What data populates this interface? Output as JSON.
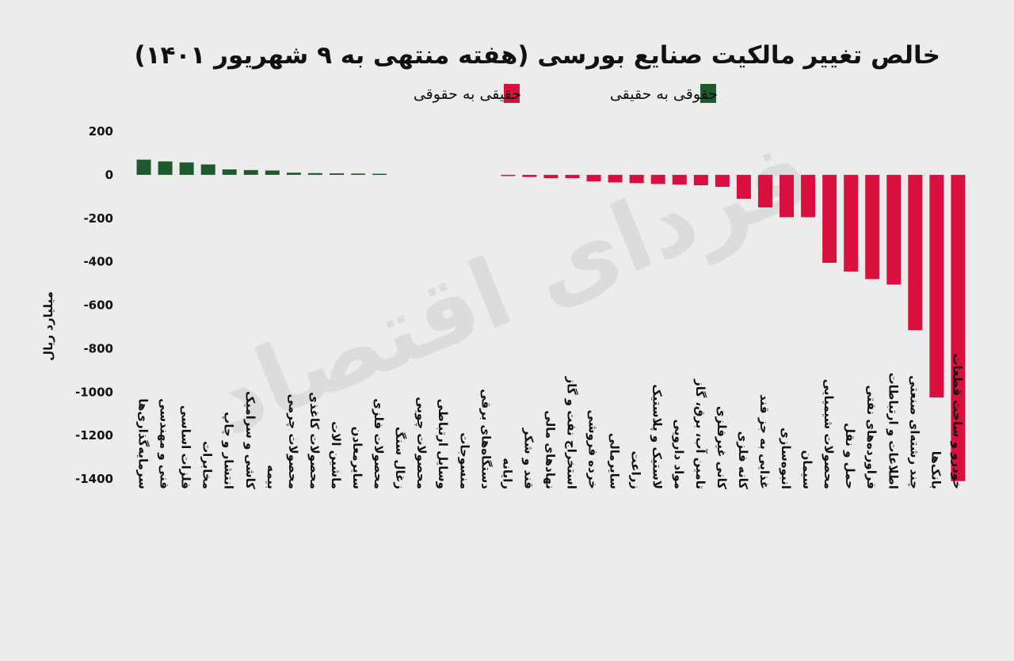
{
  "colors": {
    "positive": "#1f5a2e",
    "negative": "#d90f3d",
    "background": "#ececec",
    "watermark": "#b9c4bc"
  },
  "watermark": "فردای اقتصاد",
  "chart_data": {
    "type": "bar",
    "title": "خالص تغییر مالکیت صنایع بورسی (هفته منتهی به ۹ شهریور ۱۴۰۱)",
    "ylabel": "میلیارد ریال",
    "ylim": [
      -1400,
      200
    ],
    "yticks": [
      200,
      0,
      -200,
      -400,
      -600,
      -800,
      -1000,
      -1200,
      -1400
    ],
    "ytick_labels": [
      "200",
      "0",
      "-200",
      "-400",
      "-600",
      "-800",
      "-1000",
      "-1200",
      "-1400"
    ],
    "grid": false,
    "legend_position": "top-center",
    "legend": [
      {
        "label": "حقوقی به حقیقی",
        "color": "#1f5a2e"
      },
      {
        "label": "حقیقی به حقوقی",
        "color": "#d90f3d"
      }
    ],
    "categories": [
      "سرمایه‌گذاری‌ها",
      "فنی و مهندسی",
      "فلزات اساسی",
      "مخابرات",
      "انتشار و چاپ",
      "کاشی و سرامیک",
      "بیمه",
      "محصولات چرمی",
      "محصولات کاغذی",
      "ماشین الات",
      "سایرمعادن",
      "محصولات فلزی",
      "زغال سنگ",
      "محصولات چوبی",
      "وسایل ارتباطی",
      "منسوجات",
      "دستگاه‌های برقی",
      "رایانه",
      "قند و شکر",
      "نهادهای مالی",
      "استخراج نفت و گاز",
      "خرده فروشی",
      "سایرمالی",
      "زراعت",
      "لاستیک و پلاستیک",
      "مواد دارویی",
      "تامین آب، برق، گاز",
      "کانی غیرفلزی",
      "کانه فلزی",
      "غذایی به جز قند",
      "انبوه‌سازی",
      "سیمان",
      "محصولات شیمیایی",
      "حمل و نقل",
      "فراورده‌های نفتی",
      "اطلاعات و ارتباطات",
      "چند رشته‌ای صنعتی",
      "بانک‌ها",
      "خودرو و ساخت قطعات"
    ],
    "values": [
      70,
      62,
      57,
      48,
      25,
      22,
      20,
      10,
      8,
      7,
      6,
      5,
      0,
      0,
      0,
      0,
      0,
      -5,
      -10,
      -15,
      -15,
      -30,
      -35,
      -38,
      -42,
      -45,
      -48,
      -55,
      -110,
      -150,
      -195,
      -195,
      -405,
      -445,
      -480,
      -505,
      -715,
      -1025,
      -1410
    ]
  }
}
